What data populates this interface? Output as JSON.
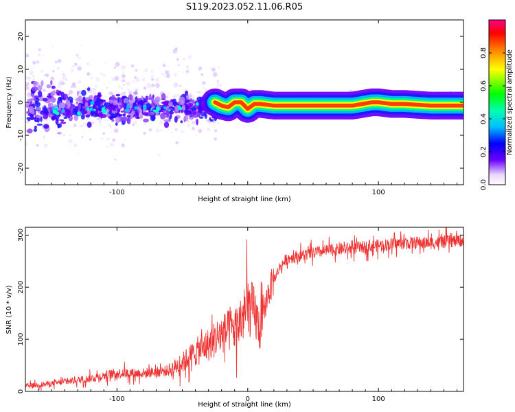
{
  "title": "S119.2023.052.11.06.R05",
  "chart_data": [
    {
      "type": "heatmap",
      "xlabel": "Height of straight line (km)",
      "ylabel": "Frequency (Hz)",
      "xlim": [
        -170,
        165
      ],
      "ylim": [
        -25,
        25
      ],
      "x_ticks": [
        -100,
        0,
        100
      ],
      "x_tick_labels": [
        "-100",
        "",
        "100"
      ],
      "y_ticks": [
        -20,
        -10,
        0,
        10,
        20
      ],
      "y_tick_labels": [
        "-20",
        "-10",
        "0",
        "10",
        "20"
      ],
      "colorbar": {
        "label": "Normalized spectral amplitude",
        "range": [
          0,
          1
        ],
        "ticks": [
          0.0,
          0.2,
          0.4,
          0.6,
          0.8
        ],
        "tick_labels": [
          "0.0",
          "0.2",
          "0.4",
          "0.6",
          "0.8"
        ],
        "colormap": "rainbow"
      },
      "ridge": {
        "description_points_x": [
          -25,
          -20,
          -15,
          -10,
          -5,
          0,
          5,
          10,
          20,
          40,
          60,
          80,
          95,
          100,
          110,
          120,
          140,
          165
        ],
        "description_points_y": [
          0,
          -1,
          -1.5,
          0,
          0,
          -2,
          -0.5,
          -0.5,
          -1,
          -1,
          -1,
          -1,
          0,
          0,
          -0.5,
          -0.5,
          -1,
          -1
        ]
      }
    },
    {
      "type": "line",
      "xlabel": "Height of straight line (km)",
      "ylabel": "SNR (10 * v/v)",
      "xlim": [
        -170,
        165
      ],
      "ylim": [
        0,
        315
      ],
      "x_ticks": [
        -100,
        0,
        100
      ],
      "x_tick_labels": [
        "-100",
        "0",
        "100"
      ],
      "y_ticks": [
        0,
        100,
        200,
        300
      ],
      "y_tick_labels": [
        "0",
        "100",
        "200",
        "300"
      ],
      "series": [
        {
          "color": "#ee3333",
          "trend_x": [
            -170,
            -150,
            -120,
            -100,
            -80,
            -60,
            -50,
            -40,
            -30,
            -20,
            -10,
            -5,
            0,
            5,
            10,
            15,
            20,
            25,
            30,
            40,
            60,
            80,
            100,
            120,
            140,
            165
          ],
          "trend_y": [
            10,
            15,
            25,
            35,
            35,
            40,
            55,
            75,
            90,
            110,
            120,
            135,
            165,
            150,
            115,
            185,
            215,
            240,
            255,
            260,
            270,
            275,
            280,
            285,
            285,
            290
          ]
        }
      ]
    }
  ]
}
